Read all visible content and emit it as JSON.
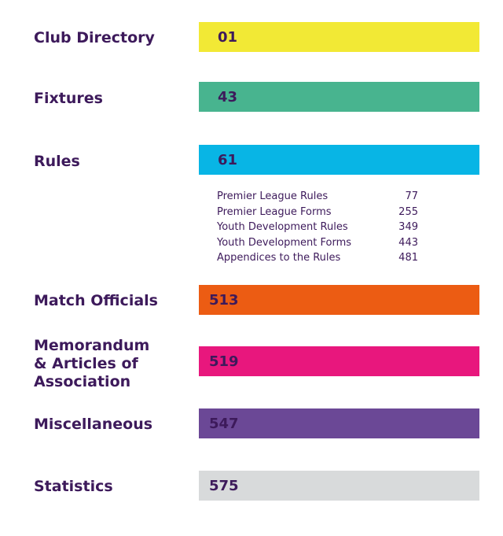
{
  "sections": [
    {
      "title": "Club Directory",
      "page": "01",
      "color": "#f2e935"
    },
    {
      "title": "Fixtures",
      "page": "43",
      "color": "#48b48f"
    },
    {
      "title": "Rules",
      "page": "61",
      "color": "#08b5e5"
    },
    {
      "title": "Match Officials",
      "page": "513",
      "color": "#ec5c13"
    },
    {
      "title": "Memorandum\n& Articles of\nAssociation",
      "page": "519",
      "color": "#e8177d"
    },
    {
      "title": "Miscellaneous",
      "page": "547",
      "color": "#6b4896"
    },
    {
      "title": "Statistics",
      "page": "575",
      "color": "#d8dadb"
    }
  ],
  "rules_subsections": [
    {
      "label": "Premier League Rules",
      "page": "77"
    },
    {
      "label": "Premier League Forms",
      "page": "255"
    },
    {
      "label": "Youth Development Rules",
      "page": "349"
    },
    {
      "label": "Youth Development Forms",
      "page": "443"
    },
    {
      "label": "Appendices to the Rules",
      "page": "481"
    }
  ]
}
